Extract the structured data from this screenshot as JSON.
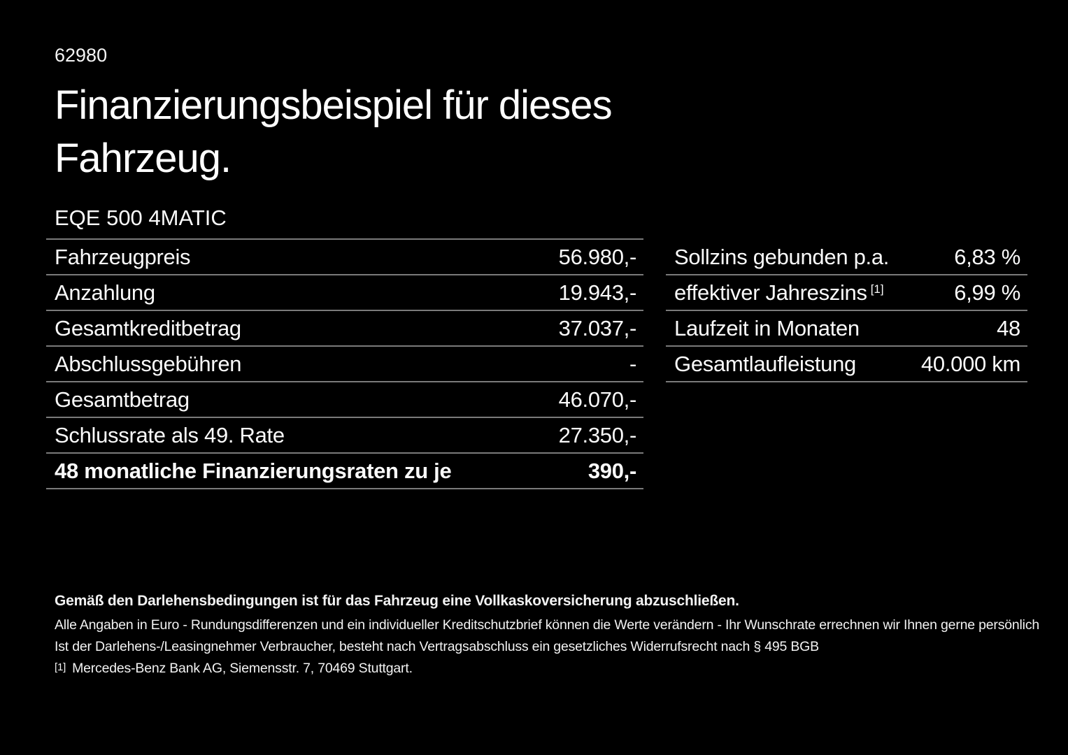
{
  "page": {
    "background_color": "#000000",
    "text_color": "#ffffff",
    "divider_color": "#7a7a7a"
  },
  "header": {
    "reference_number": "62980",
    "title_line1": "Finanzierungsbeispiel für dieses",
    "title_line2": "Fahrzeug.",
    "vehicle_model": "EQE 500 4MATIC"
  },
  "financing_table": {
    "rows": [
      {
        "label": "Fahrzeugpreis",
        "value": "56.980,-"
      },
      {
        "label": "Anzahlung",
        "value": "19.943,-"
      },
      {
        "label": "Gesamtkreditbetrag",
        "value": "37.037,-"
      },
      {
        "label": "Abschlussgebühren",
        "value": "-"
      },
      {
        "label": "Gesamtbetrag",
        "value": "46.070,-"
      },
      {
        "label": "Schlussrate als 49. Rate",
        "value": "27.350,-"
      },
      {
        "label": "48 monatliche Finanzierungsraten zu je",
        "value": "390,-"
      }
    ]
  },
  "conditions_table": {
    "rows": [
      {
        "label": "Sollzins gebunden p.a.",
        "value": "6,83 %"
      },
      {
        "label": "effektiver Jahreszins",
        "footnote_marker": "[1]",
        "value": "6,99 %"
      },
      {
        "label": "Laufzeit in Monaten",
        "value": "48"
      },
      {
        "label": "Gesamtlaufleistung",
        "value": "40.000 km"
      }
    ]
  },
  "footer": {
    "insurance_note": "Gemäß den Darlehensbedingungen ist für das Fahrzeug eine Vollkaskoversicherung abzuschließen.",
    "disclaimer_line1": "Alle Angaben in Euro - Rundungsdifferenzen und ein individueller Kreditschutzbrief können die Werte verändern - Ihr Wunschrate errechnen wir Ihnen gerne persönlich",
    "disclaimer_line2": "Ist der Darlehens-/Leasingnehmer Verbraucher, besteht nach Vertragsabschluss ein gesetzliches Widerrufsrecht nach § 495 BGB",
    "footnote_marker": "[1]",
    "footnote_text": "Mercedes-Benz Bank AG, Siemensstr. 7, 70469 Stuttgart."
  }
}
